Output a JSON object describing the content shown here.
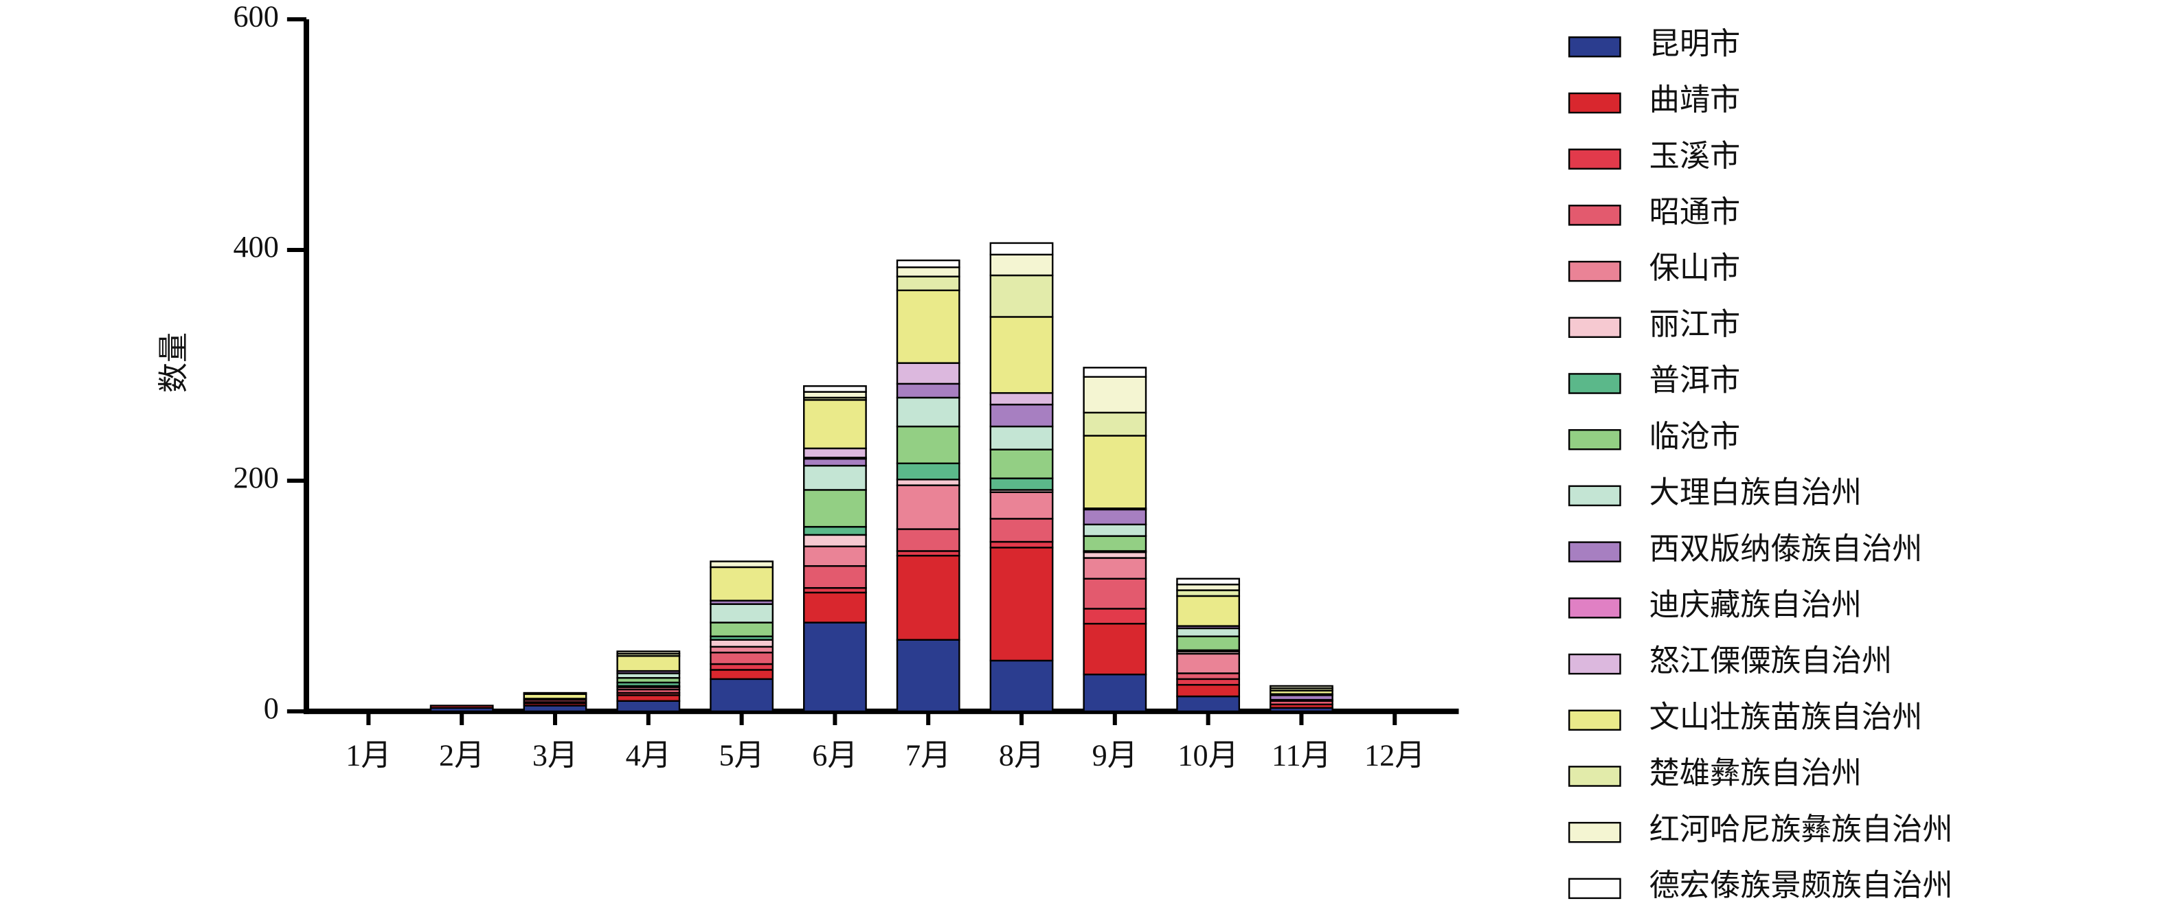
{
  "chart_data": {
    "type": "stacked-bar",
    "y_label": "数量",
    "categories": [
      "1月",
      "2月",
      "3月",
      "4月",
      "5月",
      "6月",
      "7月",
      "8月",
      "9月",
      "10月",
      "11月",
      "12月"
    ],
    "ylim": [
      0,
      600
    ],
    "yticks": [
      0,
      200,
      400,
      600
    ],
    "series": [
      {
        "name": "昆明市",
        "color": "#2b3d8f",
        "values": [
          0,
          3,
          5,
          9,
          28,
          77,
          62,
          44,
          32,
          13,
          3,
          0
        ]
      },
      {
        "name": "曲靖市",
        "color": "#d9272e",
        "values": [
          0,
          2,
          2,
          5,
          8,
          26,
          73,
          98,
          44,
          10,
          3,
          0
        ]
      },
      {
        "name": "玉溪市",
        "color": "#e23a4b",
        "values": [
          0,
          0,
          1,
          2,
          5,
          4,
          4,
          5,
          13,
          5,
          0,
          0
        ]
      },
      {
        "name": "昭通市",
        "color": "#e35a6e",
        "values": [
          0,
          0,
          2,
          3,
          10,
          19,
          19,
          20,
          26,
          5,
          3,
          0
        ]
      },
      {
        "name": "保山市",
        "color": "#ea8396",
        "values": [
          0,
          0,
          0,
          2,
          5,
          17,
          38,
          23,
          18,
          17,
          1,
          0
        ]
      },
      {
        "name": "丽江市",
        "color": "#f6c9d1",
        "values": [
          0,
          0,
          0,
          1,
          6,
          10,
          5,
          2,
          5,
          2,
          0,
          0
        ]
      },
      {
        "name": "普洱市",
        "color": "#5bb88a",
        "values": [
          0,
          0,
          0,
          3,
          3,
          7,
          14,
          10,
          1,
          1,
          0,
          0
        ]
      },
      {
        "name": "临沧市",
        "color": "#93cf84",
        "values": [
          0,
          0,
          0,
          4,
          12,
          32,
          32,
          25,
          13,
          12,
          0,
          0
        ]
      },
      {
        "name": "大理白族自治州",
        "color": "#c4e5d4",
        "values": [
          0,
          0,
          1,
          4,
          16,
          21,
          25,
          20,
          10,
          7,
          0,
          0
        ]
      },
      {
        "name": "西双版纳傣族自治州",
        "color": "#a77fc1",
        "values": [
          0,
          0,
          0,
          2,
          3,
          6,
          12,
          19,
          13,
          2,
          4,
          0
        ]
      },
      {
        "name": "迪庆藏族自治州",
        "color": "#e080c4",
        "values": [
          0,
          0,
          0,
          0,
          0,
          1,
          0,
          0,
          0,
          0,
          0,
          0
        ]
      },
      {
        "name": "怒江傈僳族自治州",
        "color": "#dcb8de",
        "values": [
          0,
          0,
          0,
          0,
          0,
          8,
          18,
          10,
          1,
          0,
          1,
          0
        ]
      },
      {
        "name": "文山壮族苗族自治州",
        "color": "#eaea8a",
        "values": [
          0,
          0,
          4,
          13,
          29,
          42,
          63,
          66,
          63,
          26,
          3,
          0
        ]
      },
      {
        "name": "楚雄彝族自治州",
        "color": "#e2ebaa",
        "values": [
          0,
          0,
          1,
          2,
          0,
          2,
          12,
          36,
          20,
          5,
          2,
          0
        ]
      },
      {
        "name": "红河哈尼族彝族自治州",
        "color": "#f4f5d2",
        "values": [
          0,
          0,
          0,
          2,
          5,
          5,
          8,
          18,
          31,
          5,
          2,
          0
        ]
      },
      {
        "name": "德宏傣族景颇族自治州",
        "color": "#ffffff",
        "values": [
          0,
          0,
          0,
          0,
          0,
          5,
          6,
          10,
          8,
          5,
          0,
          0
        ]
      }
    ]
  }
}
